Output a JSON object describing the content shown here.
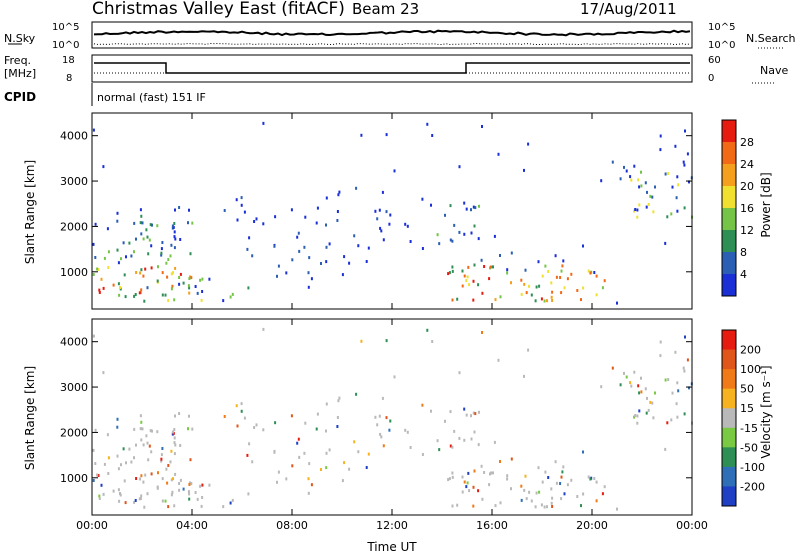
{
  "header": {
    "title": "Christmas Valley East (fitACF)",
    "beam": "Beam 23",
    "date": "17/Aug/2011"
  },
  "mini_panels": {
    "nsky_label": "N.Sky",
    "nsearch_label": "N.Search",
    "noise_ticks_left": [
      "10^5",
      "10^0"
    ],
    "noise_ticks_right": [
      "10^5",
      "10^0"
    ],
    "freq_label_1": "Freq.",
    "freq_label_2": "[MHz]",
    "freq_ticks": [
      "18",
      "8"
    ],
    "nave_label": "Nave",
    "nave_ticks": [
      "60",
      "0"
    ],
    "cpid_label": "CPID",
    "cpid_text": "normal (fast) 151 IF"
  },
  "chart_data": [
    {
      "type": "heatmap",
      "name": "power",
      "ylabel": "Slant Range [km]",
      "xlabel": "",
      "x_ticks": [
        "00:00",
        "04:00",
        "08:00",
        "12:00",
        "16:00",
        "20:00",
        "00:00"
      ],
      "y_ticks": [
        "1000",
        "2000",
        "3000",
        "4000"
      ],
      "xlim_hours": [
        0,
        24
      ],
      "ylim_km": [
        180,
        4500
      ],
      "colorbar": {
        "label": "Power [dB]",
        "ticks": [
          "4",
          "8",
          "12",
          "16",
          "20",
          "24",
          "28"
        ],
        "colors": [
          "#1a2fd6",
          "#2a5fb3",
          "#2e8f55",
          "#76c447",
          "#f0e030",
          "#f4a01e",
          "#f26a15",
          "#e61c10"
        ]
      }
    },
    {
      "type": "heatmap",
      "name": "velocity",
      "ylabel": "Slant Range [km]",
      "xlabel": "Time UT",
      "x_ticks": [
        "00:00",
        "04:00",
        "08:00",
        "12:00",
        "16:00",
        "20:00",
        "00:00"
      ],
      "y_ticks": [
        "1000",
        "2000",
        "3000",
        "4000"
      ],
      "xlim_hours": [
        0,
        24
      ],
      "ylim_km": [
        180,
        4500
      ],
      "colorbar": {
        "label": "Velocity [m s⁻¹]",
        "ticks": [
          "200",
          "100",
          "50",
          "15",
          "-15",
          "-50",
          "-100",
          "-200"
        ],
        "colors": [
          "#1f3fc4",
          "#2e6fb8",
          "#2e8f55",
          "#7ac943",
          "#b9b9b9",
          "#f6b31f",
          "#f07a18",
          "#e0551a",
          "#e61c10"
        ]
      }
    }
  ]
}
